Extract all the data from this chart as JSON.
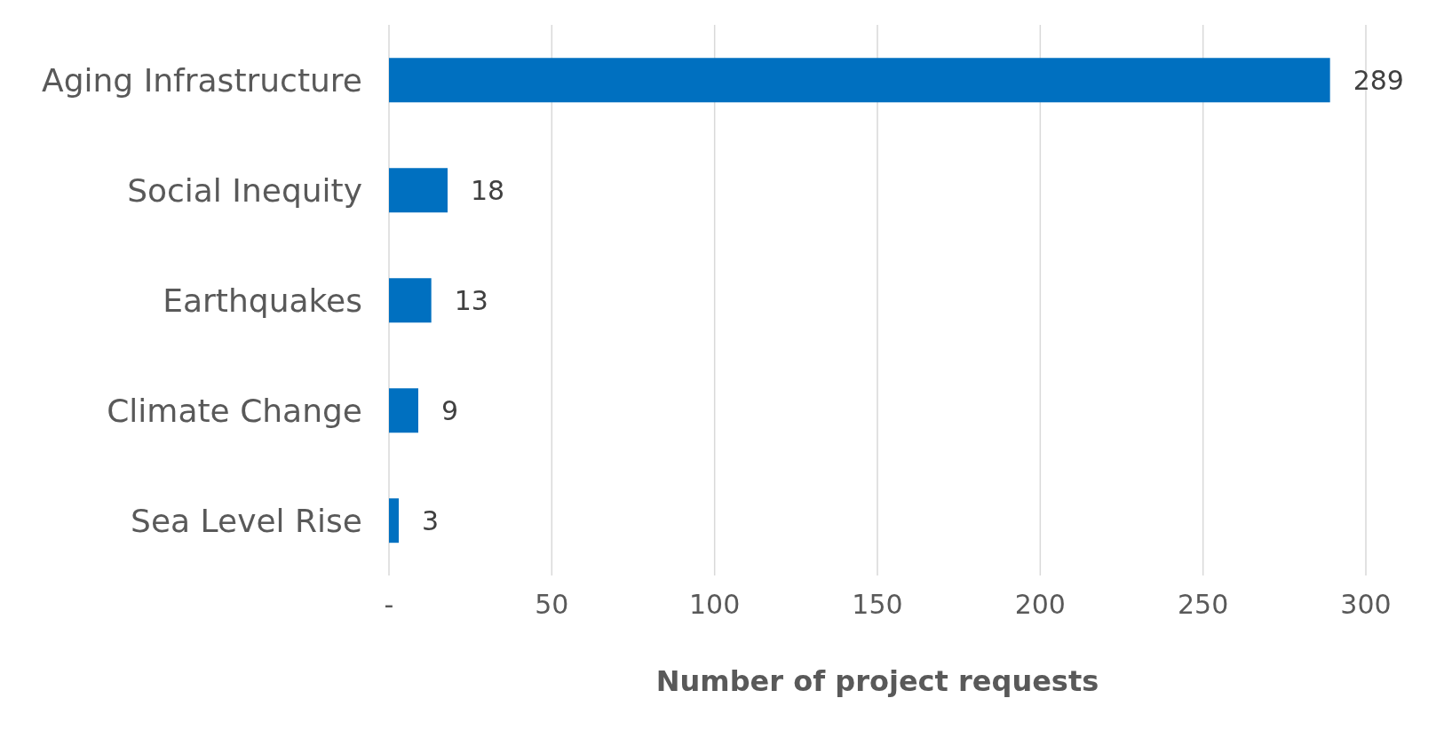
{
  "chart_data": {
    "type": "bar",
    "orientation": "horizontal",
    "categories": [
      "Aging Infrastructure",
      "Social Inequity",
      "Earthquakes",
      "Climate Change",
      "Sea Level Rise"
    ],
    "values": [
      289,
      18,
      13,
      9,
      3
    ],
    "color": "#0070c0",
    "xlim": [
      0,
      300
    ],
    "xticks": [
      {
        "value": 0,
        "label": "-"
      },
      50,
      100,
      150,
      200,
      250,
      300
    ],
    "xlabel": "Number of project requests",
    "grid": "x",
    "data_labels": true
  }
}
